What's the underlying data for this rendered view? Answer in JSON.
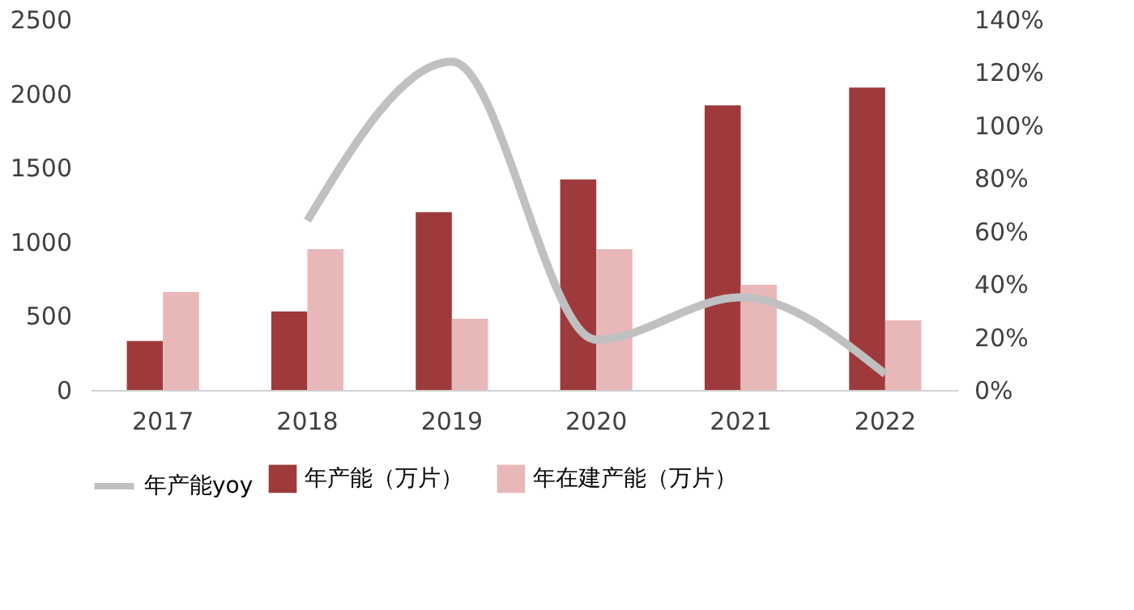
{
  "chart_data": {
    "type": "bar",
    "categories": [
      "2017",
      "2018",
      "2019",
      "2020",
      "2021",
      "2022"
    ],
    "series": [
      {
        "name": "年产能（万片）",
        "color": "#9e3a3c",
        "values": [
          330,
          530,
          1200,
          1420,
          1920,
          2040
        ]
      },
      {
        "name": "年在建产能（万片）",
        "color": "#e8b8b9",
        "values": [
          660,
          950,
          480,
          950,
          710,
          470
        ]
      },
      {
        "name": "年产能yoy",
        "color": "#c0c0c0",
        "type": "line",
        "axis": "y2",
        "values": [
          null,
          64,
          124,
          19,
          35,
          6
        ]
      }
    ],
    "ylim": [
      0,
      2500
    ],
    "yticks": [
      0,
      500,
      1000,
      1500,
      2000,
      2500
    ],
    "y2lim": [
      0,
      140
    ],
    "y2ticks": [
      {
        "value": 0,
        "label": "0%"
      },
      {
        "value": 20,
        "label": "20%"
      },
      {
        "value": 40,
        "label": "40%"
      },
      {
        "value": 60,
        "label": "60%"
      },
      {
        "value": 80,
        "label": "80%"
      },
      {
        "value": 100,
        "label": "100%"
      },
      {
        "value": 120,
        "label": "120%"
      },
      {
        "value": 140,
        "label": "140%"
      }
    ],
    "grid": false,
    "legend": "bottom",
    "line_style": "solid",
    "marker": "none"
  }
}
